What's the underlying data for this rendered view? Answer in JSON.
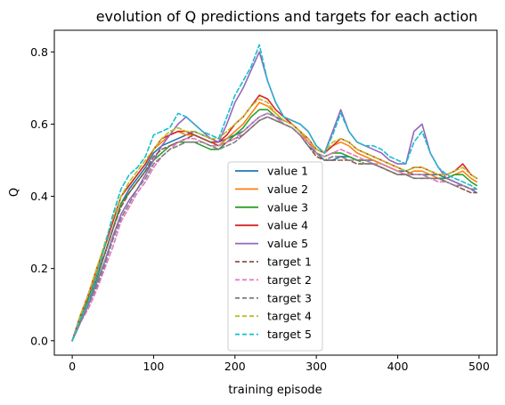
{
  "chart_data": {
    "type": "line",
    "title": "evolution of Q predictions and targets for each action",
    "xlabel": "training episode",
    "ylabel": "Q",
    "xlim": [
      -22,
      522
    ],
    "ylim": [
      -0.04,
      0.86
    ],
    "xticks": [
      0,
      100,
      200,
      300,
      400,
      500
    ],
    "yticks": [
      0.0,
      0.2,
      0.4,
      0.6,
      0.8
    ],
    "ytick_labels": [
      "0.0",
      "0.2",
      "0.4",
      "0.6",
      "0.8"
    ],
    "grid": false,
    "legend_position": "lower-center",
    "x": [
      0,
      10,
      20,
      30,
      40,
      50,
      60,
      70,
      80,
      90,
      100,
      110,
      120,
      130,
      140,
      150,
      160,
      170,
      180,
      190,
      200,
      210,
      220,
      230,
      240,
      250,
      260,
      270,
      280,
      290,
      300,
      310,
      320,
      330,
      340,
      350,
      360,
      370,
      380,
      390,
      400,
      410,
      420,
      430,
      440,
      450,
      460,
      470,
      480,
      490,
      497
    ],
    "series": [
      {
        "name": "value 1",
        "color": "#1f77b4",
        "dashed": false,
        "values": [
          0.0,
          0.06,
          0.12,
          0.18,
          0.24,
          0.31,
          0.38,
          0.42,
          0.45,
          0.48,
          0.52,
          0.54,
          0.55,
          0.56,
          0.57,
          0.58,
          0.57,
          0.56,
          0.55,
          0.56,
          0.57,
          0.58,
          0.6,
          0.62,
          0.63,
          0.62,
          0.61,
          0.6,
          0.58,
          0.55,
          0.52,
          0.5,
          0.5,
          0.51,
          0.51,
          0.5,
          0.5,
          0.5,
          0.49,
          0.48,
          0.47,
          0.47,
          0.46,
          0.46,
          0.46,
          0.46,
          0.45,
          0.44,
          0.43,
          0.42,
          0.41
        ]
      },
      {
        "name": "value 2",
        "color": "#ff7f0e",
        "dashed": false,
        "values": [
          0.0,
          0.07,
          0.12,
          0.19,
          0.26,
          0.33,
          0.4,
          0.43,
          0.46,
          0.49,
          0.53,
          0.55,
          0.57,
          0.58,
          0.57,
          0.57,
          0.56,
          0.55,
          0.54,
          0.56,
          0.58,
          0.6,
          0.63,
          0.66,
          0.65,
          0.63,
          0.61,
          0.6,
          0.58,
          0.55,
          0.53,
          0.52,
          0.54,
          0.55,
          0.54,
          0.52,
          0.51,
          0.5,
          0.49,
          0.48,
          0.47,
          0.46,
          0.47,
          0.47,
          0.46,
          0.45,
          0.45,
          0.46,
          0.47,
          0.45,
          0.44
        ]
      },
      {
        "name": "value 3",
        "color": "#2ca02c",
        "dashed": false,
        "values": [
          0.0,
          0.06,
          0.11,
          0.17,
          0.24,
          0.31,
          0.38,
          0.41,
          0.44,
          0.47,
          0.5,
          0.52,
          0.54,
          0.55,
          0.55,
          0.55,
          0.54,
          0.53,
          0.53,
          0.55,
          0.57,
          0.59,
          0.62,
          0.64,
          0.64,
          0.62,
          0.6,
          0.59,
          0.57,
          0.54,
          0.52,
          0.51,
          0.52,
          0.52,
          0.51,
          0.5,
          0.5,
          0.49,
          0.48,
          0.47,
          0.46,
          0.46,
          0.46,
          0.46,
          0.45,
          0.45,
          0.45,
          0.46,
          0.46,
          0.44,
          0.43
        ]
      },
      {
        "name": "value 4",
        "color": "#d62728",
        "dashed": false,
        "values": [
          0.0,
          0.07,
          0.13,
          0.2,
          0.26,
          0.33,
          0.4,
          0.43,
          0.46,
          0.49,
          0.53,
          0.56,
          0.57,
          0.58,
          0.58,
          0.57,
          0.56,
          0.55,
          0.55,
          0.57,
          0.6,
          0.62,
          0.65,
          0.68,
          0.67,
          0.64,
          0.62,
          0.6,
          0.58,
          0.56,
          0.53,
          0.52,
          0.54,
          0.56,
          0.55,
          0.53,
          0.52,
          0.51,
          0.5,
          0.49,
          0.48,
          0.47,
          0.48,
          0.48,
          0.47,
          0.46,
          0.46,
          0.47,
          0.49,
          0.46,
          0.45
        ]
      },
      {
        "name": "value 5",
        "color": "#9467bd",
        "dashed": false,
        "values": [
          0.0,
          0.05,
          0.1,
          0.16,
          0.22,
          0.29,
          0.35,
          0.39,
          0.42,
          0.46,
          0.5,
          0.54,
          0.57,
          0.6,
          0.62,
          0.6,
          0.58,
          0.56,
          0.55,
          0.6,
          0.66,
          0.7,
          0.75,
          0.8,
          0.72,
          0.66,
          0.62,
          0.61,
          0.6,
          0.58,
          0.54,
          0.52,
          0.58,
          0.64,
          0.58,
          0.55,
          0.54,
          0.53,
          0.52,
          0.5,
          0.49,
          0.49,
          0.58,
          0.6,
          0.52,
          0.48,
          0.45,
          0.44,
          0.43,
          0.42,
          0.41
        ]
      },
      {
        "name": "target 1",
        "color": "#8c564b",
        "dashed": true,
        "values": [
          0.0,
          0.06,
          0.12,
          0.18,
          0.24,
          0.31,
          0.37,
          0.41,
          0.44,
          0.47,
          0.51,
          0.53,
          0.54,
          0.55,
          0.56,
          0.57,
          0.56,
          0.55,
          0.54,
          0.55,
          0.56,
          0.57,
          0.59,
          0.61,
          0.62,
          0.61,
          0.6,
          0.59,
          0.57,
          0.54,
          0.51,
          0.5,
          0.5,
          0.5,
          0.5,
          0.49,
          0.49,
          0.49,
          0.48,
          0.47,
          0.46,
          0.46,
          0.45,
          0.45,
          0.45,
          0.45,
          0.44,
          0.43,
          0.42,
          0.41,
          0.41
        ]
      },
      {
        "name": "target 2",
        "color": "#e377c2",
        "dashed": true,
        "values": [
          0.0,
          0.05,
          0.09,
          0.14,
          0.2,
          0.26,
          0.33,
          0.37,
          0.41,
          0.44,
          0.48,
          0.51,
          0.53,
          0.55,
          0.56,
          0.56,
          0.55,
          0.54,
          0.54,
          0.55,
          0.56,
          0.58,
          0.6,
          0.62,
          0.63,
          0.62,
          0.6,
          0.59,
          0.57,
          0.55,
          0.52,
          0.51,
          0.52,
          0.53,
          0.52,
          0.51,
          0.5,
          0.49,
          0.49,
          0.48,
          0.47,
          0.46,
          0.46,
          0.46,
          0.45,
          0.44,
          0.44,
          0.43,
          0.43,
          0.42,
          0.42
        ]
      },
      {
        "name": "target 3",
        "color": "#7f7f7f",
        "dashed": true,
        "values": [
          0.0,
          0.05,
          0.1,
          0.15,
          0.21,
          0.28,
          0.34,
          0.38,
          0.42,
          0.45,
          0.49,
          0.51,
          0.53,
          0.54,
          0.55,
          0.55,
          0.55,
          0.54,
          0.53,
          0.54,
          0.55,
          0.57,
          0.59,
          0.61,
          0.62,
          0.61,
          0.6,
          0.59,
          0.57,
          0.54,
          0.52,
          0.5,
          0.51,
          0.51,
          0.5,
          0.5,
          0.49,
          0.49,
          0.48,
          0.47,
          0.46,
          0.46,
          0.45,
          0.45,
          0.45,
          0.45,
          0.44,
          0.43,
          0.43,
          0.42,
          0.42
        ]
      },
      {
        "name": "target 4",
        "color": "#bcbd22",
        "dashed": true,
        "values": [
          0.0,
          0.07,
          0.13,
          0.2,
          0.27,
          0.34,
          0.4,
          0.44,
          0.47,
          0.5,
          0.53,
          0.56,
          0.58,
          0.59,
          0.58,
          0.58,
          0.57,
          0.56,
          0.56,
          0.58,
          0.6,
          0.62,
          0.65,
          0.67,
          0.66,
          0.63,
          0.61,
          0.6,
          0.58,
          0.56,
          0.53,
          0.52,
          0.55,
          0.56,
          0.55,
          0.53,
          0.52,
          0.51,
          0.5,
          0.49,
          0.48,
          0.47,
          0.48,
          0.48,
          0.47,
          0.46,
          0.46,
          0.47,
          0.48,
          0.46,
          0.45
        ]
      },
      {
        "name": "target 5",
        "color": "#17becf",
        "dashed": true,
        "values": [
          0.0,
          0.06,
          0.11,
          0.18,
          0.26,
          0.35,
          0.42,
          0.46,
          0.48,
          0.51,
          0.57,
          0.58,
          0.59,
          0.63,
          0.62,
          0.6,
          0.58,
          0.57,
          0.56,
          0.62,
          0.68,
          0.72,
          0.76,
          0.82,
          0.72,
          0.66,
          0.62,
          0.61,
          0.6,
          0.58,
          0.54,
          0.52,
          0.57,
          0.63,
          0.58,
          0.55,
          0.54,
          0.54,
          0.53,
          0.51,
          0.5,
          0.49,
          0.55,
          0.58,
          0.52,
          0.48,
          0.46,
          0.45,
          0.44,
          0.43,
          0.42
        ]
      }
    ]
  }
}
